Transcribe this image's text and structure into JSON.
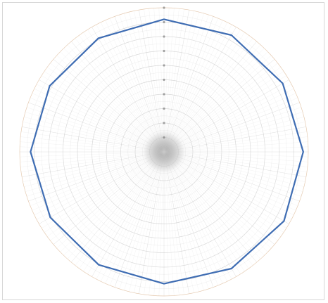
{
  "chart_data": {
    "type": "polar-line",
    "title": "",
    "legend": "none",
    "grid": true,
    "radial_range": [
      0,
      10
    ],
    "radial_ticks": [
      1,
      2,
      3,
      4,
      5,
      6,
      7,
      8,
      9,
      10
    ],
    "angular_range_deg": [
      0,
      360
    ],
    "angular_grid_step_deg": 2,
    "series": [
      {
        "color": "#3f6db3",
        "theta_deg": [
          0,
          30,
          60,
          90,
          120,
          150,
          180,
          210,
          240,
          270,
          300,
          330,
          360
        ],
        "r": [
          9.2,
          9.35,
          9.5,
          9.65,
          9.6,
          9.35,
          9.15,
          9.05,
          9.1,
          9.25,
          9.15,
          9.1,
          9.2
        ]
      }
    ],
    "colors": {
      "grid": "#c9c9c9",
      "outer_grid": "#d9b08a",
      "series": "#3f6db3"
    }
  }
}
